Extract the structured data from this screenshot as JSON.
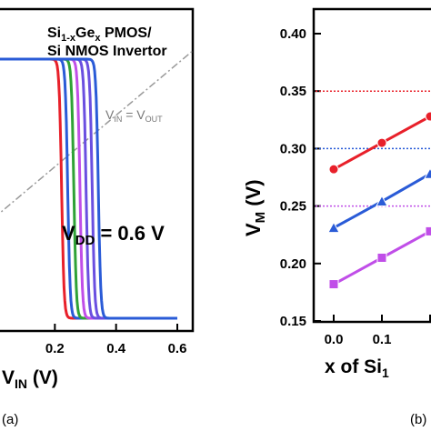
{
  "colors": {
    "red": "#e8202a",
    "blue": "#2a5bd7",
    "green": "#2fa236",
    "purple": "#a03fd8",
    "violet": "#6a4fe0",
    "lavender": "#c04ee8",
    "ideal": "#999999"
  },
  "chart_data": [
    {
      "type": "line",
      "panel_label": "(a)",
      "xlabel_main": "V",
      "xlabel_sub": "IN",
      "xlabel_unit": " (V)",
      "xticks": [
        "0.2",
        "0.4",
        "0.6"
      ],
      "xlim": [
        0.0,
        0.6
      ],
      "ylim": [
        0.0,
        0.6
      ],
      "annotations": {
        "title_line1_main": "Si",
        "title_line1_sub": "1-x",
        "title_line1_mid": "Ge",
        "title_line1_sub2": "x",
        "title_line1_end": " PMOS/",
        "title_line2": "Si NMOS Invertor",
        "ideal_main": "V",
        "ideal_sub": "IN",
        "ideal_eq": " = V",
        "ideal_sub2": "OUT",
        "vdd_main": "V",
        "vdd_sub": "DD",
        "vdd_value": " = 0.6 V"
      },
      "vdd": 0.6,
      "series": [
        {
          "color_key": "red",
          "switch_vin": 0.222
        },
        {
          "color_key": "blue",
          "switch_vin": 0.242
        },
        {
          "color_key": "green",
          "switch_vin": 0.262
        },
        {
          "color_key": "lavender",
          "switch_vin": 0.282
        },
        {
          "color_key": "violet",
          "switch_vin": 0.302
        },
        {
          "color_key": "violet",
          "switch_vin": 0.322
        },
        {
          "color_key": "blue",
          "switch_vin": 0.342
        }
      ]
    },
    {
      "type": "line",
      "panel_label": "(b)",
      "xlabel": "x of Si",
      "xlabel_sub": "1",
      "ylabel_main": "V",
      "ylabel_sub": "M",
      "ylabel_unit": " (V)",
      "yticks": [
        "0.15",
        "0.20",
        "0.25",
        "0.30",
        "0.35",
        "0.40"
      ],
      "xticks": [
        "0.0",
        "0.1"
      ],
      "ylim": [
        0.15,
        0.42
      ],
      "xlim": [
        -0.05,
        0.25
      ],
      "reference_lines": [
        {
          "y": 0.35,
          "color_key": "red"
        },
        {
          "y": 0.3,
          "color_key": "blue"
        },
        {
          "y": 0.25,
          "color_key": "lavender"
        }
      ],
      "series": [
        {
          "color_key": "red",
          "marker": "circle",
          "x": [
            0.0,
            0.1,
            0.2
          ],
          "y": [
            0.282,
            0.305,
            0.328
          ]
        },
        {
          "color_key": "blue",
          "marker": "triangle",
          "x": [
            0.0,
            0.1,
            0.2
          ],
          "y": [
            0.231,
            0.254,
            0.278
          ]
        },
        {
          "color_key": "lavender",
          "marker": "square",
          "x": [
            0.0,
            0.1,
            0.2
          ],
          "y": [
            0.182,
            0.205,
            0.228
          ]
        }
      ]
    }
  ]
}
